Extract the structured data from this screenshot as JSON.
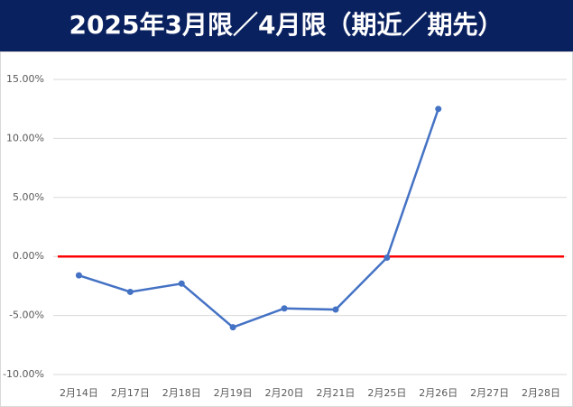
{
  "chart_data": {
    "type": "line",
    "title": "2025年3月限／4月限（期近／期先）",
    "categories": [
      "2月14日",
      "2月17日",
      "2月18日",
      "2月19日",
      "2月20日",
      "2月21日",
      "2月25日",
      "2月26日",
      "2月27日",
      "2月28日"
    ],
    "series": [
      {
        "color": "#4472c4",
        "values": [
          -1.6,
          -3.0,
          -2.3,
          -6.0,
          -4.4,
          -4.5,
          -0.1,
          12.5,
          null,
          null
        ]
      }
    ],
    "ylim": [
      -10,
      15
    ],
    "yticks": [
      {
        "value": -10,
        "label": "-10.00%"
      },
      {
        "value": -5,
        "label": "-5.00%"
      },
      {
        "value": 0,
        "label": "0.00%"
      },
      {
        "value": 5,
        "label": "5.00%"
      },
      {
        "value": 10,
        "label": "10.00%"
      },
      {
        "value": 15,
        "label": "15.00%"
      }
    ],
    "grid": true,
    "reference_line": {
      "value": 0,
      "color": "#ff0000"
    }
  }
}
